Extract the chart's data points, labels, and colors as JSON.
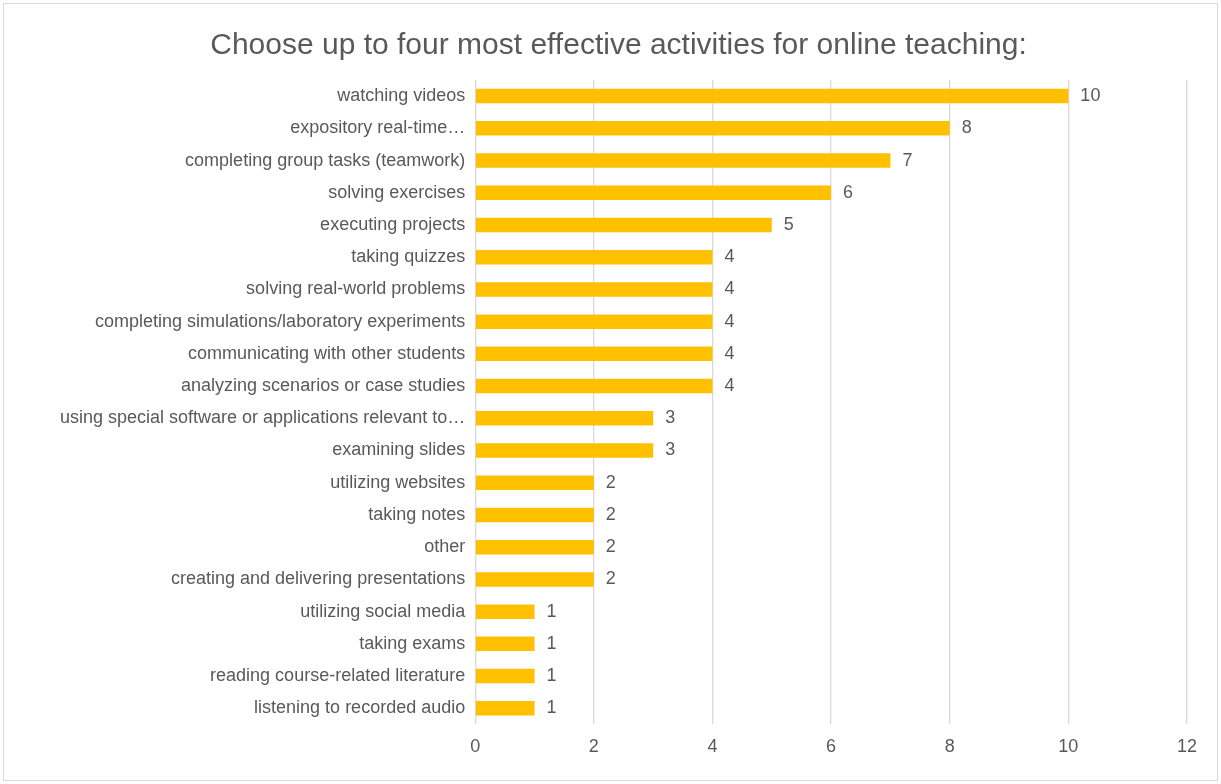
{
  "chart_data": {
    "type": "bar",
    "orientation": "horizontal",
    "title": "Choose up to four most effective activities for online teaching:",
    "categories": [
      "watching videos",
      "expository real-time…",
      "completing group tasks (teamwork)",
      "solving exercises",
      "executing projects",
      "taking quizzes",
      "solving real-world problems",
      "completing simulations/laboratory experiments",
      "communicating with other students",
      "analyzing scenarios or case studies",
      "using special software or applications relevant to…",
      "examining slides",
      "utilizing websites",
      "taking notes",
      "other",
      "creating and delivering presentations",
      "utilizing social media",
      "taking exams",
      "reading course-related literature",
      "listening to recorded audio"
    ],
    "values": [
      10,
      8,
      7,
      6,
      5,
      4,
      4,
      4,
      4,
      4,
      3,
      3,
      2,
      2,
      2,
      2,
      1,
      1,
      1,
      1
    ],
    "color": "#ffc000",
    "xlim": [
      0,
      12
    ],
    "xticks": [
      0,
      2,
      4,
      6,
      8,
      10,
      12
    ],
    "grid": "x",
    "data_labels": true
  }
}
